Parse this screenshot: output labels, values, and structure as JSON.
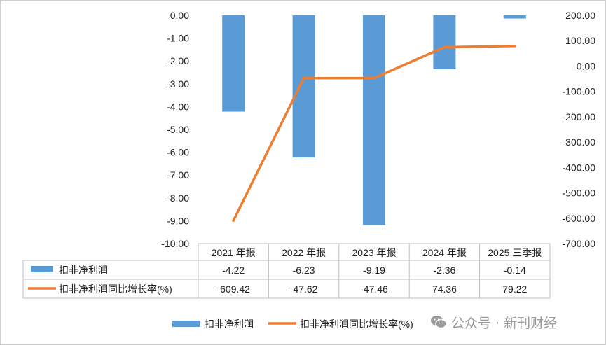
{
  "chart_data": {
    "type": "bar+line",
    "categories": [
      "2021 年报",
      "2022 年报",
      "2023 年报",
      "2024 年报",
      "2025 三季报"
    ],
    "series": [
      {
        "name": "扣非净利润",
        "type": "bar",
        "axis": "left",
        "values": [
          -4.22,
          -6.23,
          -9.19,
          -2.36,
          -0.14
        ],
        "labels": [
          "-4.22",
          "-6.23",
          "-9.19",
          "-2.36",
          "-0.14"
        ],
        "color": "#5b9bd5"
      },
      {
        "name": "扣非净利润同比增长率(%)",
        "type": "line",
        "axis": "right",
        "values": [
          -609.42,
          -47.62,
          -47.46,
          74.36,
          79.22
        ],
        "labels": [
          "-609.42",
          "-47.62",
          "-47.46",
          "74.36",
          "79.22"
        ],
        "color": "#ed7d31"
      }
    ],
    "y_left": {
      "min": -10,
      "max": 0,
      "step": 1,
      "ticks": [
        "0.00",
        "-1.00",
        "-2.00",
        "-3.00",
        "-4.00",
        "-5.00",
        "-6.00",
        "-7.00",
        "-8.00",
        "-9.00",
        "-10.00"
      ]
    },
    "y_right": {
      "min": -700,
      "max": 200,
      "step": 100,
      "ticks": [
        "200.00",
        "100.00",
        "0.00",
        "-100.00",
        "-200.00",
        "-300.00",
        "-400.00",
        "-500.00",
        "-600.00",
        "-700.00"
      ]
    },
    "data_table": true,
    "legend_position": "bottom",
    "grid": false
  },
  "watermark": {
    "text": "公众号 · 新刊财经",
    "icon": "wechat-icon"
  }
}
